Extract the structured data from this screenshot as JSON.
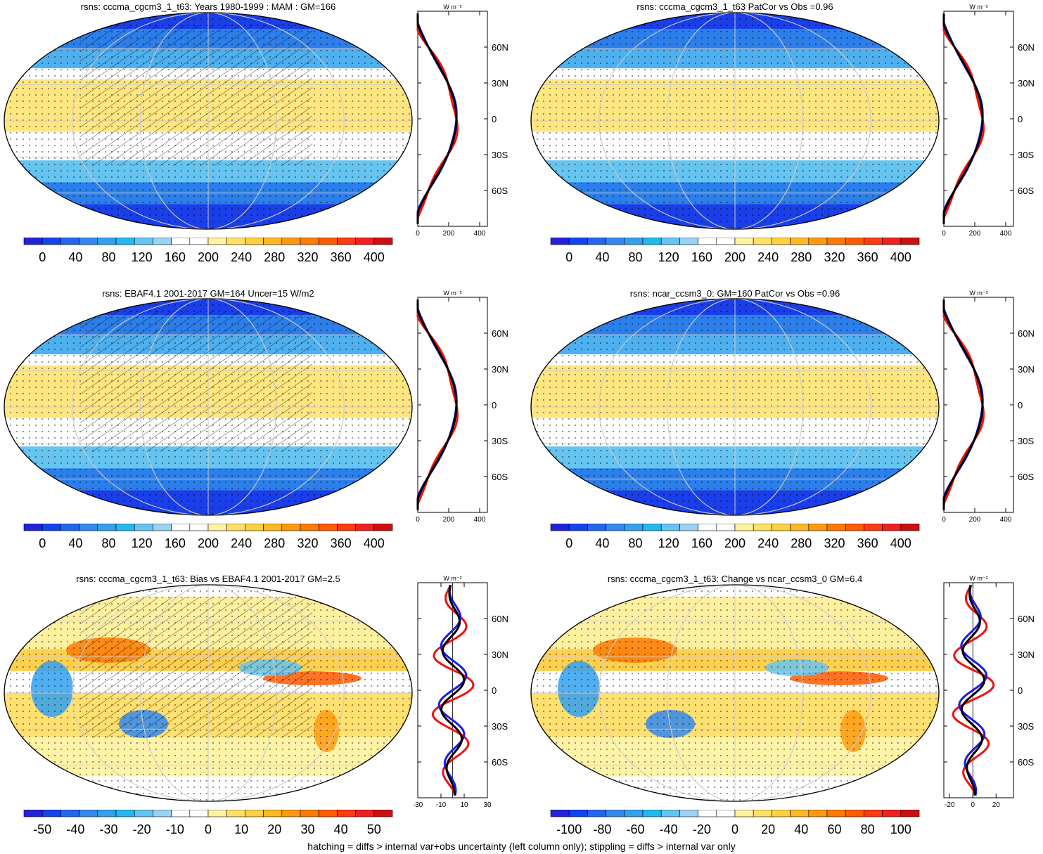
{
  "colors": {
    "abs_scale": [
      "#2222dd",
      "#1144ee",
      "#2266ee",
      "#3388ee",
      "#33a0ee",
      "#22b8f0",
      "#66c4f0",
      "#99d2f2",
      "#ffffff",
      "#ffffff",
      "#fff3a0",
      "#ffe066",
      "#ffd040",
      "#ffb820",
      "#ff9a10",
      "#ff7a00",
      "#ff5a00",
      "#ff3a10",
      "#ee2020",
      "#cc1010"
    ],
    "diff_scale": [
      "#2222dd",
      "#1144ee",
      "#2266ee",
      "#3388ee",
      "#33a0ee",
      "#22b8f0",
      "#66c4f0",
      "#99d2f2",
      "#ffffff",
      "#ffffff",
      "#fff3a0",
      "#ffe066",
      "#ffd040",
      "#ffb820",
      "#ff9a10",
      "#ff7a00",
      "#ff5a00",
      "#ff3a10",
      "#ee2020",
      "#cc1010"
    ],
    "line_blue": "#1a1aee",
    "line_red": "#ee1111",
    "line_black": "#000000"
  },
  "panels": [
    {
      "id": "p1",
      "title": "rsns: cccma_cgcm3_1_t63: Years 1980-1999 : MAM : GM=166",
      "hatch": true,
      "scale": "abs",
      "cbar_labels": [
        "0",
        "40",
        "80",
        "120",
        "160",
        "200",
        "240",
        "280",
        "320",
        "360",
        "400"
      ],
      "profile_unit": "W m⁻²",
      "profile_x_ticks": [
        "0",
        "200",
        "400"
      ],
      "profile_x_range": [
        0,
        450
      ],
      "profile_y_ticks": [
        "60N",
        "30N",
        "0",
        "30S",
        "60S"
      ]
    },
    {
      "id": "p2",
      "title": "rsns: cccma_cgcm3_1_t63 PatCor vs Obs =0.96",
      "hatch": false,
      "scale": "abs",
      "cbar_labels": [
        "0",
        "40",
        "80",
        "120",
        "160",
        "200",
        "240",
        "280",
        "320",
        "360",
        "400"
      ],
      "profile_unit": "W m⁻²",
      "profile_x_ticks": [
        "0",
        "200",
        "400"
      ],
      "profile_x_range": [
        0,
        450
      ],
      "profile_y_ticks": [
        "60N",
        "30N",
        "0",
        "30S",
        "60S"
      ]
    },
    {
      "id": "p3",
      "title": "rsns: EBAF4.1 2001-2017 GM=164 Uncer=15 W/m2",
      "hatch": true,
      "scale": "abs",
      "cbar_labels": [
        "0",
        "40",
        "80",
        "120",
        "160",
        "200",
        "240",
        "280",
        "320",
        "360",
        "400"
      ],
      "profile_unit": "W m⁻²",
      "profile_x_ticks": [
        "0",
        "200",
        "400"
      ],
      "profile_x_range": [
        0,
        450
      ],
      "profile_y_ticks": [
        "60N",
        "30N",
        "0",
        "30S",
        "60S"
      ]
    },
    {
      "id": "p4",
      "title": "rsns: ncar_ccsm3_0: GM=160 PatCor vs Obs =0.96",
      "hatch": false,
      "scale": "abs",
      "cbar_labels": [
        "0",
        "40",
        "80",
        "120",
        "160",
        "200",
        "240",
        "280",
        "320",
        "360",
        "400"
      ],
      "profile_unit": "W m⁻²",
      "profile_x_ticks": [
        "0",
        "200",
        "400"
      ],
      "profile_x_range": [
        0,
        450
      ],
      "profile_y_ticks": [
        "60N",
        "30N",
        "0",
        "30S",
        "60S"
      ]
    },
    {
      "id": "p5",
      "title": "rsns: cccma_cgcm3_1_t63: Bias vs EBAF4.1 2001-2017 GM=2.5",
      "hatch": true,
      "scale": "diff",
      "cbar_labels": [
        "-50",
        "-40",
        "-30",
        "-20",
        "-10",
        "0",
        "10",
        "20",
        "30",
        "40",
        "50"
      ],
      "profile_unit": "W m⁻²",
      "profile_x_ticks": [
        "-30",
        "-10",
        "10",
        "30"
      ],
      "profile_x_range": [
        -30,
        30
      ],
      "profile_y_ticks": [
        "60N",
        "30N",
        "0",
        "30S",
        "60S"
      ]
    },
    {
      "id": "p6",
      "title": "rsns: cccma_cgcm3_1_t63: Change vs ncar_ccsm3_0 GM=6.4",
      "hatch": false,
      "scale": "diff",
      "cbar_labels": [
        "-100",
        "-80",
        "-60",
        "-40",
        "-20",
        "0",
        "20",
        "40",
        "60",
        "80",
        "100"
      ],
      "profile_unit": "W m⁻²",
      "profile_x_ticks": [
        "-20",
        "0",
        "20"
      ],
      "profile_x_range": [
        -25,
        35
      ],
      "profile_y_ticks": [
        "60N",
        "30N",
        "0",
        "30S",
        "60S"
      ]
    }
  ],
  "footnote": "hatching = diffs > internal var+obs uncertainty (left column only); stippling = diffs > internal var only"
}
